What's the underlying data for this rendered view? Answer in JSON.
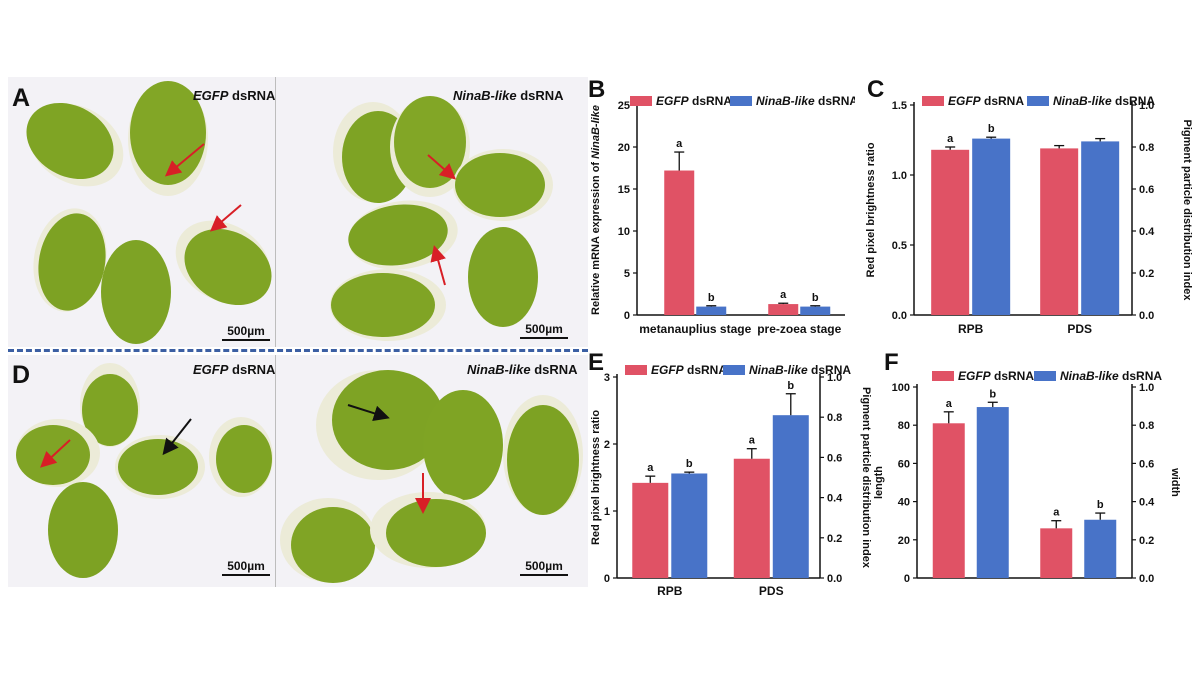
{
  "photos": {
    "A": {
      "letter": "A",
      "left_caption_gene": "EGFP",
      "left_caption_suffix": " dsRNA",
      "right_caption_gene": "NinaB-like",
      "right_caption_suffix": " dsRNA",
      "scale_left": "500µm",
      "scale_right": "500µm"
    },
    "D": {
      "letter": "D",
      "left_caption_gene": "EGFP",
      "left_caption_suffix": " dsRNA",
      "right_caption_gene": "NinaB-like",
      "right_caption_suffix": " dsRNA",
      "scale_left": "500µm",
      "scale_right": "500µm"
    }
  },
  "colors": {
    "egfp": "#e05265",
    "ninab": "#4873c8",
    "background": "#f3f2f6",
    "egg": "#7fa424",
    "arrow_red": "#d81f26",
    "arrow_black": "#111111",
    "divider": "#3b5fa3"
  },
  "chart_data": [
    {
      "id": "B",
      "letter": "B",
      "type": "bar",
      "categories": [
        "metanauplius stage",
        "pre-zoea stage"
      ],
      "series": [
        {
          "name_gene": "EGFP",
          "name_suffix": " dsRNA",
          "values": [
            17.2,
            1.3
          ],
          "errors": [
            2.2,
            0.1
          ],
          "letters": [
            "a",
            "a"
          ]
        },
        {
          "name_gene": "NinaB-like",
          "name_suffix": " dsRNA",
          "values": [
            1.0,
            1.0
          ],
          "errors": [
            0.1,
            0.1
          ],
          "letters": [
            "b",
            "b"
          ]
        }
      ],
      "ylabel_prefix": "Relative mRNA expression of ",
      "ylabel_gene": "NinaB-like",
      "ylim": [
        0,
        25
      ],
      "yticks": [
        0,
        5,
        10,
        15,
        20,
        25
      ],
      "legend": "top"
    },
    {
      "id": "C",
      "letter": "C",
      "type": "bar",
      "categories": [
        "RPB",
        "PDS"
      ],
      "series": [
        {
          "name_gene": "EGFP",
          "name_suffix": " dsRNA",
          "values": [
            1.18,
            1.19
          ],
          "errors": [
            0.02,
            0.02
          ],
          "letters": [
            "a",
            ""
          ]
        },
        {
          "name_gene": "NinaB-like",
          "name_suffix": " dsRNA",
          "values": [
            1.26,
            1.24
          ],
          "errors": [
            0.01,
            0.02
          ],
          "letters": [
            "b",
            ""
          ]
        }
      ],
      "ylabel": "Red pixel brightness ratio",
      "y2label": "Pigment particle distribution index",
      "ylim": [
        0,
        1.5
      ],
      "yticks": [
        0.0,
        0.5,
        1.0,
        1.5
      ],
      "yticklabels": [
        "0.0",
        "0.5",
        "1.0",
        "1.5"
      ],
      "y2ticklabels": [
        "0.0",
        "0.2",
        "0.4",
        "0.6",
        "0.8",
        "1.0"
      ],
      "legend": "top"
    },
    {
      "id": "E",
      "letter": "E",
      "type": "bar",
      "categories": [
        "RPB",
        "PDS"
      ],
      "series": [
        {
          "name_gene": "EGFP",
          "name_suffix": " dsRNA",
          "values": [
            1.42,
            1.78
          ],
          "errors": [
            0.1,
            0.15
          ],
          "letters": [
            "a",
            "a"
          ]
        },
        {
          "name_gene": "NinaB-like",
          "name_suffix": " dsRNA",
          "values": [
            1.56,
            2.43
          ],
          "errors": [
            0.02,
            0.32
          ],
          "letters": [
            "b",
            "b"
          ]
        }
      ],
      "ylabel": "Red pixel brightness ratio",
      "y2label": "Pigment particle distribution index",
      "ylim": [
        0,
        3
      ],
      "yticks": [
        0,
        1,
        2,
        3
      ],
      "yticklabels": [
        "0",
        "1",
        "2",
        "3"
      ],
      "y2ticklabels": [
        "0.0",
        "0.2",
        "0.4",
        "0.6",
        "0.8",
        "1.0"
      ],
      "legend": "top"
    },
    {
      "id": "F",
      "letter": "F",
      "type": "bar",
      "categories": [
        "length",
        "width"
      ],
      "series": [
        {
          "name_gene": "EGFP",
          "name_suffix": " dsRNA",
          "values": [
            81,
            26
          ],
          "errors": [
            6,
            4
          ],
          "letters": [
            "a",
            "a"
          ]
        },
        {
          "name_gene": "NinaB-like",
          "name_suffix": " dsRNA",
          "values": [
            89.5,
            30.5
          ],
          "errors": [
            2.5,
            3.5
          ],
          "letters": [
            "b",
            "b"
          ]
        }
      ],
      "ylabel": "length",
      "y2label": "width",
      "ylim": [
        0,
        100
      ],
      "yticks": [
        0,
        20,
        40,
        60,
        80,
        100
      ],
      "yticklabels": [
        "0",
        "20",
        "40",
        "60",
        "80",
        "100"
      ],
      "y2ticklabels": [
        "0.0",
        "0.2",
        "0.4",
        "0.6",
        "0.8",
        "1.0"
      ],
      "legend": "top"
    }
  ]
}
